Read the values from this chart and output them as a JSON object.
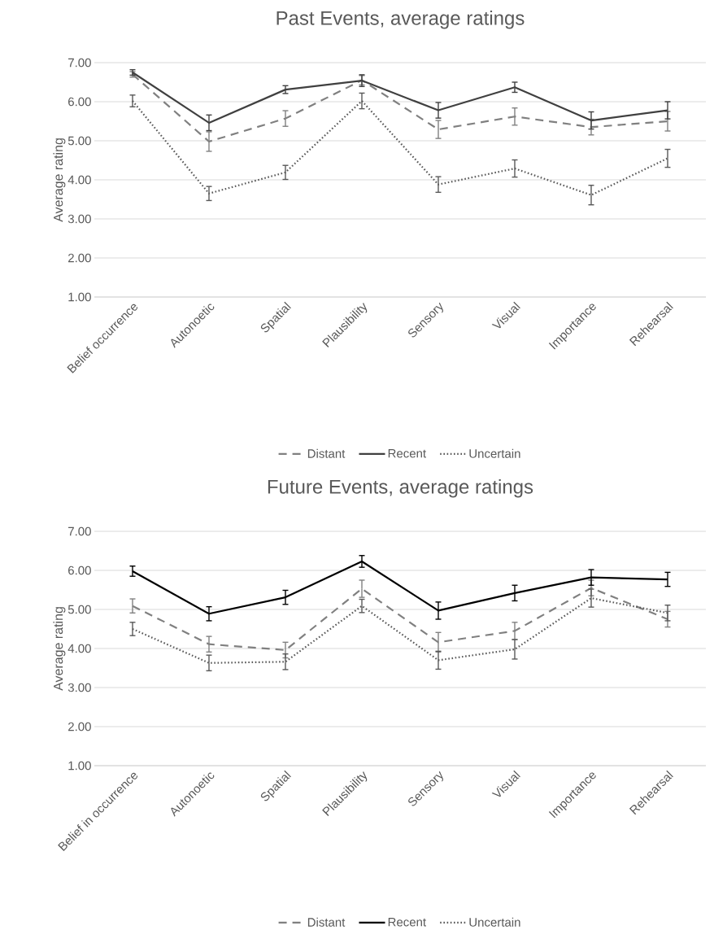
{
  "chart_data": [
    {
      "type": "line",
      "title": "Past Events, average ratings",
      "ylabel": "Average rating",
      "categories": [
        "Belief occurrence",
        "Autonoetic",
        "Spatial",
        "Plausibility",
        "Sensory",
        "Visual",
        "Importance",
        "Rehearsal"
      ],
      "ylim": [
        1,
        7
      ],
      "yticks": [
        {
          "value": 1,
          "label": "1.00"
        },
        {
          "value": 2,
          "label": "2.00"
        },
        {
          "value": 3,
          "label": "3.00"
        },
        {
          "value": 4,
          "label": "4.00"
        },
        {
          "value": 5,
          "label": "5.00"
        },
        {
          "value": 6,
          "label": "6.00"
        },
        {
          "value": 7,
          "label": "7.00"
        }
      ],
      "grid": "y",
      "legend": "bottom",
      "marker": "none",
      "series": [
        {
          "name": "Distant",
          "color": "#808080",
          "line_style": "dashed",
          "values": [
            6.7,
            4.98,
            5.57,
            6.55,
            5.29,
            5.62,
            5.35,
            5.5
          ],
          "errors": [
            0.07,
            0.25,
            0.2,
            0.12,
            0.23,
            0.22,
            0.2,
            0.25
          ]
        },
        {
          "name": "Recent",
          "color": "#404040",
          "line_style": "solid",
          "values": [
            6.75,
            5.46,
            6.31,
            6.54,
            5.78,
            6.37,
            5.52,
            5.78
          ],
          "errors": [
            0.07,
            0.2,
            0.1,
            0.15,
            0.2,
            0.13,
            0.22,
            0.22
          ]
        },
        {
          "name": "Uncertain",
          "color": "#595959",
          "line_style": "dotted",
          "values": [
            6.02,
            3.65,
            4.19,
            6.02,
            3.88,
            4.29,
            3.61,
            4.55
          ],
          "errors": [
            0.15,
            0.18,
            0.18,
            0.2,
            0.2,
            0.22,
            0.25,
            0.23
          ]
        }
      ]
    },
    {
      "type": "line",
      "title": "Future Events, average ratings",
      "ylabel": "Average rating",
      "categories": [
        "Belief in occurrence",
        "Autonoetic",
        "Spatial",
        "Plausibility",
        "Sensory",
        "Visual",
        "Importance",
        "Rehearsal"
      ],
      "ylim": [
        1,
        7
      ],
      "yticks": [
        {
          "value": 1,
          "label": "1.00"
        },
        {
          "value": 2,
          "label": "2.00"
        },
        {
          "value": 3,
          "label": "3.00"
        },
        {
          "value": 4,
          "label": "4.00"
        },
        {
          "value": 5,
          "label": "5.00"
        },
        {
          "value": 6,
          "label": "6.00"
        },
        {
          "value": 7,
          "label": "7.00"
        }
      ],
      "grid": "y",
      "legend": "bottom",
      "marker": "none",
      "series": [
        {
          "name": "Distant",
          "color": "#808080",
          "line_style": "dashed",
          "values": [
            5.09,
            4.11,
            3.96,
            5.53,
            4.16,
            4.45,
            5.55,
            4.75
          ],
          "errors": [
            0.18,
            0.2,
            0.2,
            0.22,
            0.25,
            0.22,
            0.2,
            0.2
          ]
        },
        {
          "name": "Recent",
          "color": "#000000",
          "line_style": "solid",
          "values": [
            5.98,
            4.89,
            5.31,
            6.23,
            4.97,
            5.42,
            5.82,
            5.77
          ],
          "errors": [
            0.13,
            0.18,
            0.18,
            0.15,
            0.22,
            0.2,
            0.2,
            0.18
          ]
        },
        {
          "name": "Uncertain",
          "color": "#595959",
          "line_style": "dotted",
          "values": [
            4.5,
            3.63,
            3.66,
            5.09,
            3.7,
            3.98,
            5.29,
            4.91
          ],
          "errors": [
            0.17,
            0.2,
            0.2,
            0.17,
            0.23,
            0.25,
            0.23,
            0.2
          ]
        }
      ]
    }
  ]
}
